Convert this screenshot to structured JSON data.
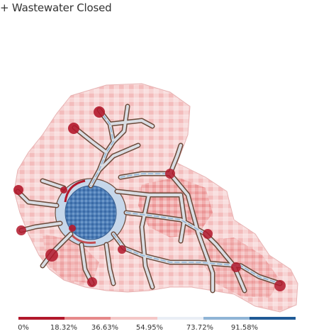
{
  "title": "+ Wastewater Closed",
  "colors": {
    "background": "#ffffff",
    "low": "#b2182b",
    "mid_low": "#ef8a8a",
    "neutral": "#f7f7f7",
    "mid_high": "#92c5de",
    "high": "#2166ac",
    "road_outline": "#6b4a3a",
    "region_fill": "#f6c9c9"
  },
  "legend": {
    "labels": [
      "0%",
      "18.32%",
      "36.63%",
      "54.95%",
      "73.72%",
      "91.58%"
    ],
    "segment_colors": [
      "#b2182b",
      "#e6898a",
      "#f4c7c7",
      "#e9eef5",
      "#8fb4d6",
      "#1f5a96"
    ]
  }
}
